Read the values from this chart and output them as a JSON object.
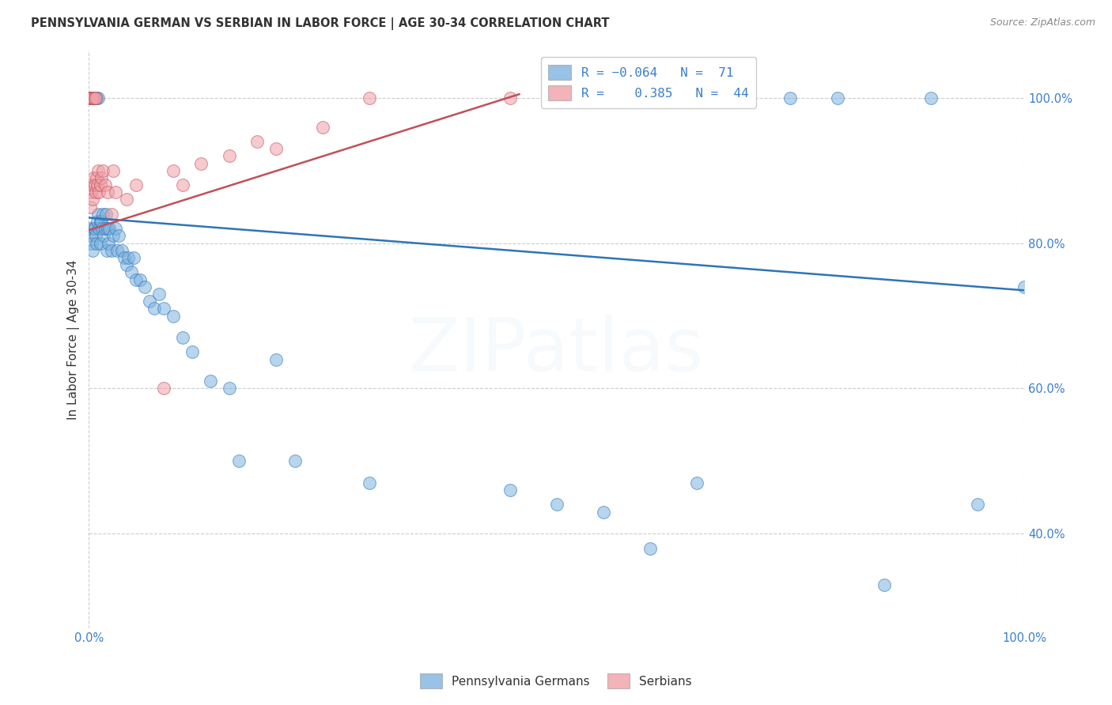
{
  "title": "PENNSYLVANIA GERMAN VS SERBIAN IN LABOR FORCE | AGE 30-34 CORRELATION CHART",
  "source": "Source: ZipAtlas.com",
  "ylabel": "In Labor Force | Age 30-34",
  "legend_blue_label": "Pennsylvania Germans",
  "legend_pink_label": "Serbians",
  "blue_color": "#7EB3E0",
  "pink_color": "#F0A0A8",
  "blue_line_color": "#2E75B6",
  "pink_line_color": "#C0505A",
  "watermark_text": "ZIPatlas",
  "watermark_alpha": 0.13,
  "background_color": "#FFFFFF",
  "grid_color": "#CCCCCC",
  "title_fontsize": 10.5,
  "source_fontsize": 9,
  "blue_trend_x": [
    0.0,
    1.0
  ],
  "blue_trend_y": [
    0.835,
    0.735
  ],
  "pink_trend_x": [
    0.0,
    0.46
  ],
  "pink_trend_y": [
    0.818,
    1.005
  ],
  "xlim": [
    0.0,
    1.0
  ],
  "ylim": [
    0.27,
    1.065
  ],
  "ytick_values": [
    0.4,
    0.6,
    0.8,
    1.0
  ],
  "ytick_labels": [
    "40.0%",
    "60.0%",
    "80.0%",
    "100.0%"
  ],
  "xtick_values": [
    0.0,
    1.0
  ],
  "xtick_labels": [
    "0.0%",
    "100.0%"
  ],
  "blue_x": [
    0.001,
    0.001,
    0.001,
    0.002,
    0.002,
    0.002,
    0.003,
    0.003,
    0.004,
    0.004,
    0.005,
    0.005,
    0.006,
    0.007,
    0.007,
    0.008,
    0.008,
    0.009,
    0.01,
    0.01,
    0.011,
    0.012,
    0.012,
    0.013,
    0.014,
    0.015,
    0.016,
    0.017,
    0.018,
    0.019,
    0.02,
    0.021,
    0.022,
    0.024,
    0.026,
    0.028,
    0.03,
    0.032,
    0.035,
    0.038,
    0.04,
    0.042,
    0.045,
    0.048,
    0.05,
    0.055,
    0.06,
    0.065,
    0.07,
    0.075,
    0.08,
    0.09,
    0.1,
    0.11,
    0.13,
    0.15,
    0.16,
    0.2,
    0.22,
    0.3,
    0.45,
    0.5,
    0.55,
    0.6,
    0.65,
    0.75,
    0.8,
    0.85,
    0.9,
    0.95,
    1.0
  ],
  "blue_y": [
    1.0,
    1.0,
    0.82,
    1.0,
    1.0,
    0.81,
    1.0,
    0.8,
    1.0,
    0.79,
    1.0,
    0.82,
    0.82,
    1.0,
    0.81,
    1.0,
    0.8,
    0.83,
    1.0,
    0.84,
    0.82,
    0.83,
    0.8,
    0.83,
    0.82,
    0.84,
    0.81,
    0.82,
    0.84,
    0.79,
    0.82,
    0.8,
    0.82,
    0.79,
    0.81,
    0.82,
    0.79,
    0.81,
    0.79,
    0.78,
    0.77,
    0.78,
    0.76,
    0.78,
    0.75,
    0.75,
    0.74,
    0.72,
    0.71,
    0.73,
    0.71,
    0.7,
    0.67,
    0.65,
    0.61,
    0.6,
    0.5,
    0.64,
    0.5,
    0.47,
    0.46,
    0.44,
    0.43,
    0.38,
    0.47,
    1.0,
    1.0,
    0.33,
    1.0,
    0.44,
    0.74
  ],
  "pink_x": [
    0.001,
    0.001,
    0.001,
    0.001,
    0.001,
    0.002,
    0.002,
    0.002,
    0.002,
    0.003,
    0.003,
    0.003,
    0.004,
    0.004,
    0.005,
    0.005,
    0.006,
    0.006,
    0.007,
    0.007,
    0.008,
    0.009,
    0.01,
    0.011,
    0.012,
    0.013,
    0.015,
    0.017,
    0.02,
    0.024,
    0.026,
    0.028,
    0.04,
    0.05,
    0.08,
    0.09,
    0.1,
    0.12,
    0.15,
    0.18,
    0.2,
    0.25,
    0.3,
    0.45
  ],
  "pink_y": [
    1.0,
    1.0,
    1.0,
    1.0,
    0.85,
    1.0,
    1.0,
    1.0,
    0.87,
    1.0,
    1.0,
    0.88,
    1.0,
    0.86,
    1.0,
    0.89,
    1.0,
    0.88,
    1.0,
    0.87,
    0.89,
    0.88,
    0.9,
    0.87,
    0.88,
    0.89,
    0.9,
    0.88,
    0.87,
    0.84,
    0.9,
    0.87,
    0.86,
    0.88,
    0.6,
    0.9,
    0.88,
    0.91,
    0.92,
    0.94,
    0.93,
    0.96,
    1.0,
    1.0
  ]
}
